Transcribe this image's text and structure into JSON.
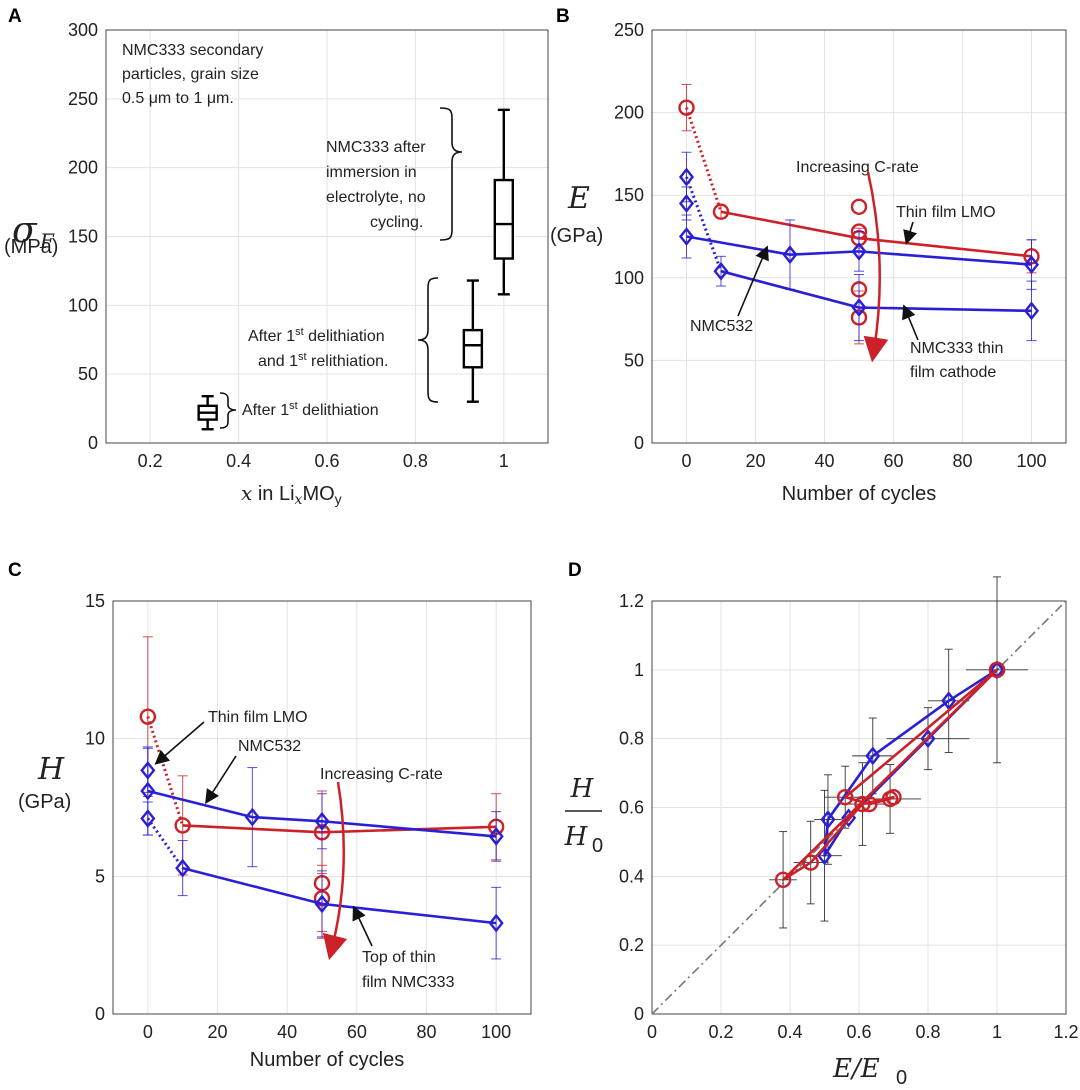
{
  "chart_data": [
    {
      "panel": "A",
      "type": "box",
      "xlabel_prefix": "x",
      "xlabel_text": " in Li",
      "xlabel_sub": "x",
      "xlabel_suffix": "MO",
      "xlabel_sub2": "y",
      "ylabel_symbol": "σ",
      "ylabel_sub": "F",
      "ylabel_unit": "(MPa)",
      "xlim": [
        0.1,
        1.1
      ],
      "ylim": [
        0,
        300
      ],
      "xticks": [
        "0.2",
        "0.4",
        "0.6",
        "0.8",
        "1"
      ],
      "xtick_values": [
        0.2,
        0.4,
        0.6,
        0.8,
        1.0
      ],
      "yticks": [
        "0",
        "50",
        "100",
        "150",
        "200",
        "250",
        "300"
      ],
      "ytick_values": [
        0,
        50,
        100,
        150,
        200,
        250,
        300
      ],
      "boxes": [
        {
          "x": 0.33,
          "min": 10,
          "q1": 17,
          "median": 22,
          "q3": 27,
          "max": 34
        },
        {
          "x": 0.93,
          "min": 30,
          "q1": 55,
          "median": 71,
          "q3": 82,
          "max": 118
        },
        {
          "x": 1.0,
          "min": 108,
          "q1": 134,
          "median": 159,
          "q3": 191,
          "max": 242
        }
      ],
      "note_lines": [
        "NMC333 secondary",
        "particles, grain size",
        "0.5 μm to 1 μm."
      ],
      "annotations": {
        "first_delith": {
          "pre": "After 1",
          "sup": "st",
          "post": " delithiation"
        },
        "delith_relith_line1": {
          "pre": "After 1",
          "sup": "st",
          "post": " delithiation"
        },
        "delith_relith_line2": {
          "pre": "and 1",
          "sup": "st",
          "post": " relithiation."
        },
        "immersion_lines": [
          "NMC333 after",
          "immersion in",
          "electrolyte, no",
          "cycling."
        ]
      }
    },
    {
      "panel": "B",
      "type": "line",
      "xlabel": "Number of cycles",
      "ylabel_symbol": "E",
      "ylabel_unit": "(GPa)",
      "xlim": [
        -10,
        110
      ],
      "ylim": [
        0,
        250
      ],
      "xticks": [
        "0",
        "20",
        "40",
        "60",
        "80",
        "100"
      ],
      "xtick_values": [
        0,
        20,
        40,
        60,
        80,
        100
      ],
      "yticks": [
        "0",
        "50",
        "100",
        "150",
        "200",
        "250"
      ],
      "ytick_values": [
        0,
        50,
        100,
        150,
        200,
        250
      ],
      "series": [
        {
          "name": "Thin film LMO",
          "color": "#cc2128",
          "marker": "circle",
          "x": [
            10,
            50,
            100
          ],
          "y": [
            140,
            124,
            113
          ],
          "err": [
            4,
            6,
            10
          ],
          "dotted_from": {
            "x": 0,
            "y": 203,
            "err": 14
          },
          "extra_points": [
            {
              "x": 50,
              "y": 143,
              "err": 0
            },
            {
              "x": 50,
              "y": 128,
              "err": 0
            },
            {
              "x": 50,
              "y": 93,
              "err": 0
            },
            {
              "x": 50,
              "y": 76,
              "err": 16
            }
          ]
        },
        {
          "name": "NMC532",
          "color": "#2b1fd6",
          "marker": "diamond",
          "x": [
            0,
            30,
            50,
            100
          ],
          "y": [
            125,
            114,
            116,
            108
          ],
          "err": [
            13,
            21,
            12,
            15
          ],
          "extra_points": [
            {
              "x": 0,
              "y": 145,
              "err": 10
            }
          ]
        },
        {
          "name": "NMC333 thin film cathode",
          "color": "#2b1fd6",
          "marker": "diamond",
          "x": [
            10,
            50,
            100
          ],
          "y": [
            104,
            82,
            80
          ],
          "err": [
            9,
            20,
            18
          ],
          "dotted_from": {
            "x": 0,
            "y": 161,
            "err": 15
          }
        }
      ],
      "labels": {
        "crate": "Increasing C-rate",
        "lmo": "Thin film LMO",
        "nmc532": "NMC532",
        "nmc333_lines": [
          "NMC333 thin",
          "film cathode"
        ]
      }
    },
    {
      "panel": "C",
      "type": "line",
      "xlabel": "Number of cycles",
      "ylabel_symbol": "H",
      "ylabel_unit": "(GPa)",
      "xlim": [
        -10,
        110
      ],
      "ylim": [
        0,
        15
      ],
      "xticks": [
        "0",
        "20",
        "40",
        "60",
        "80",
        "100"
      ],
      "xtick_values": [
        0,
        20,
        40,
        60,
        80,
        100
      ],
      "yticks": [
        "0",
        "5",
        "10",
        "15"
      ],
      "ytick_values": [
        0,
        5,
        10,
        15
      ],
      "series": [
        {
          "name": "Thin film LMO",
          "color": "#cc2128",
          "marker": "circle",
          "x": [
            10,
            50,
            100
          ],
          "y": [
            6.85,
            6.6,
            6.8
          ],
          "err": [
            1.8,
            1.5,
            1.2
          ],
          "dotted_from": {
            "x": 0,
            "y": 10.8,
            "err": 2.9
          },
          "extra_points": [
            {
              "x": 50,
              "y": 4.75,
              "err": 2.0
            },
            {
              "x": 50,
              "y": 4.2,
              "err": 1.2
            }
          ]
        },
        {
          "name": "NMC532",
          "color": "#2b1fd6",
          "marker": "diamond",
          "x": [
            0,
            30,
            50,
            100
          ],
          "y": [
            8.1,
            7.15,
            7.0,
            6.45
          ],
          "err": [
            1.6,
            1.8,
            1.0,
            0.9
          ],
          "extra_points": [
            {
              "x": 0,
              "y": 8.85,
              "err": 0.8
            }
          ]
        },
        {
          "name": "Top of thin film NMC333",
          "color": "#2b1fd6",
          "marker": "diamond",
          "x": [
            10,
            50,
            100
          ],
          "y": [
            5.3,
            4.0,
            3.3
          ],
          "err": [
            1.0,
            1.2,
            1.3
          ],
          "dotted_from": {
            "x": 0,
            "y": 7.1,
            "err": 0.6
          }
        }
      ],
      "labels": {
        "lmo": "Thin film LMO",
        "nmc532": "NMC532",
        "crate": "Increasing C-rate",
        "top_lines": [
          "Top of thin",
          "film NMC333"
        ]
      }
    },
    {
      "panel": "D",
      "type": "scatter",
      "xlabel": "E/E",
      "xlabel_sub": "0",
      "ylabel_num": "H",
      "ylabel_den": "H",
      "ylabel_sub": "0",
      "xlim": [
        0,
        1.2
      ],
      "ylim": [
        0,
        1.2
      ],
      "xticks": [
        "0",
        "0.2",
        "0.4",
        "0.6",
        "0.8",
        "1",
        "1.2"
      ],
      "xtick_values": [
        0,
        0.2,
        0.4,
        0.6,
        0.8,
        1.0,
        1.2
      ],
      "yticks": [
        "0",
        "0.2",
        "0.4",
        "0.6",
        "0.8",
        "1",
        "1.2"
      ],
      "ytick_values": [
        0,
        0.2,
        0.4,
        0.6,
        0.8,
        1.0,
        1.2
      ],
      "reference_line": {
        "x": [
          0,
          1.2
        ],
        "y": [
          0,
          1.2
        ],
        "style": "dash-dot"
      },
      "series": [
        {
          "name": "blue",
          "color": "#2b1fd6",
          "marker": "diamond",
          "x": [
            1.0,
            0.86,
            0.64,
            0.51,
            0.5,
            0.57,
            0.8,
            1.0
          ],
          "y": [
            1.0,
            0.91,
            0.75,
            0.565,
            0.46,
            0.57,
            0.8,
            1.0
          ]
        },
        {
          "name": "red",
          "color": "#cc2128",
          "marker": "circle",
          "x": [
            1.0,
            0.38,
            0.46,
            0.61,
            0.7,
            0.69,
            0.63,
            0.56,
            1.0
          ],
          "y": [
            1.0,
            0.39,
            0.44,
            0.61,
            0.63,
            0.625,
            0.61,
            0.63,
            1.0
          ]
        }
      ]
    }
  ]
}
